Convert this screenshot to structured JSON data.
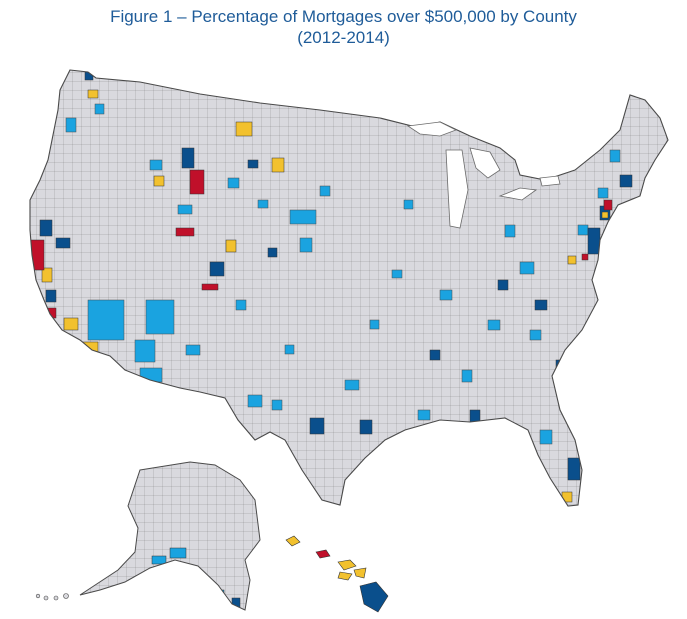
{
  "figure": {
    "title": "Figure 1 – Percentage of Mortgages over $500,000 by County",
    "subtitle": "(2012-2014)"
  },
  "map": {
    "base_color": "#d9d9de",
    "border_color": "#5a5a5a",
    "category_colors": [
      "#1aa3e0",
      "#0a4f8c",
      "#f2c12e",
      "#c0102a"
    ],
    "regions": [
      "contiguous-us",
      "alaska",
      "hawaii"
    ]
  }
}
